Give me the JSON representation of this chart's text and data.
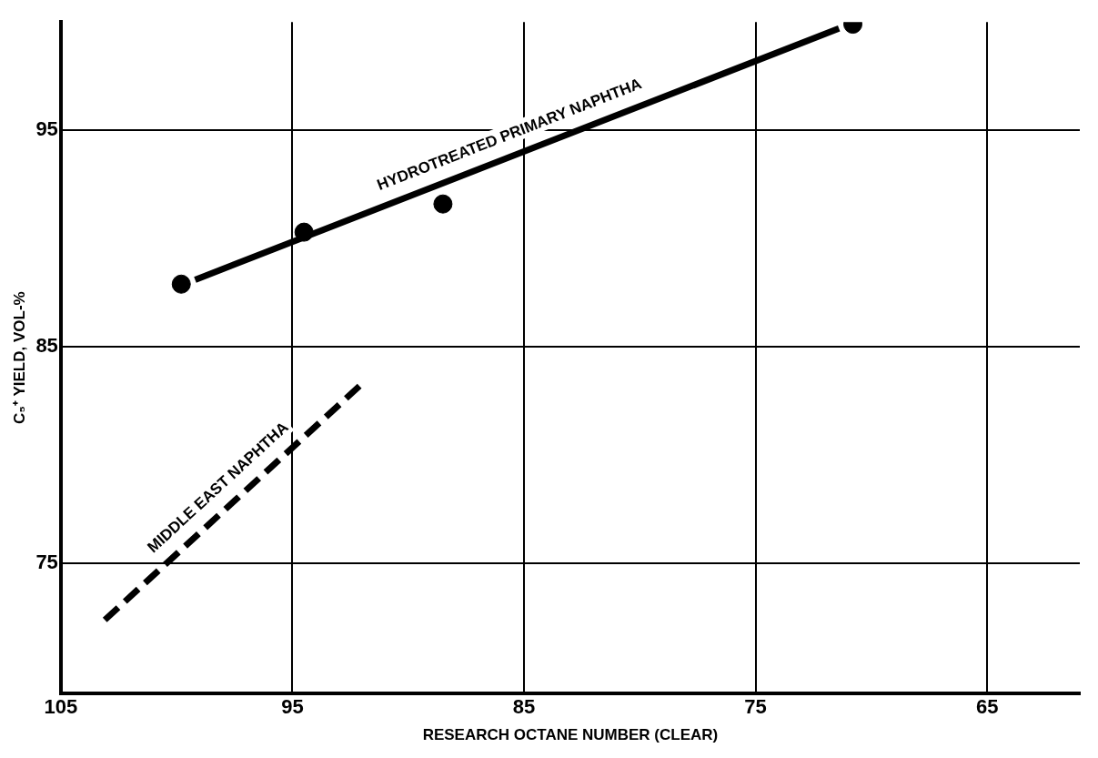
{
  "chart_data": {
    "type": "line",
    "xlabel": "RESEARCH OCTANE NUMBER (CLEAR)",
    "ylabel": "C₅⁺ YIELD, VOL-%",
    "xlim": [
      105,
      61
    ],
    "xticks": [
      105,
      95,
      85,
      75,
      65
    ],
    "ylim": [
      69,
      100
    ],
    "yticks": [
      75,
      85,
      95
    ],
    "grid": true,
    "legend": false,
    "series": [
      {
        "type": "scatter",
        "color": "#000000",
        "marker": "circle",
        "x": [
          99.8,
          94.5,
          88.5,
          70.8
        ],
        "values": [
          87.9,
          90.3,
          91.6,
          99.9
        ]
      },
      {
        "name": "HYDROTREATED PRIMARY NAPHTHA",
        "color": "#000000",
        "line_style": "solid",
        "marker": "none",
        "x": [
          99.2,
          71.4
        ],
        "values": [
          88.1,
          99.7
        ]
      },
      {
        "name": "MIDDLE EAST NAPHTHA",
        "color": "#000000",
        "line_style": "dashed",
        "marker": "none",
        "x": [
          103.1,
          92.1
        ],
        "values": [
          72.4,
          83.2
        ]
      }
    ]
  }
}
